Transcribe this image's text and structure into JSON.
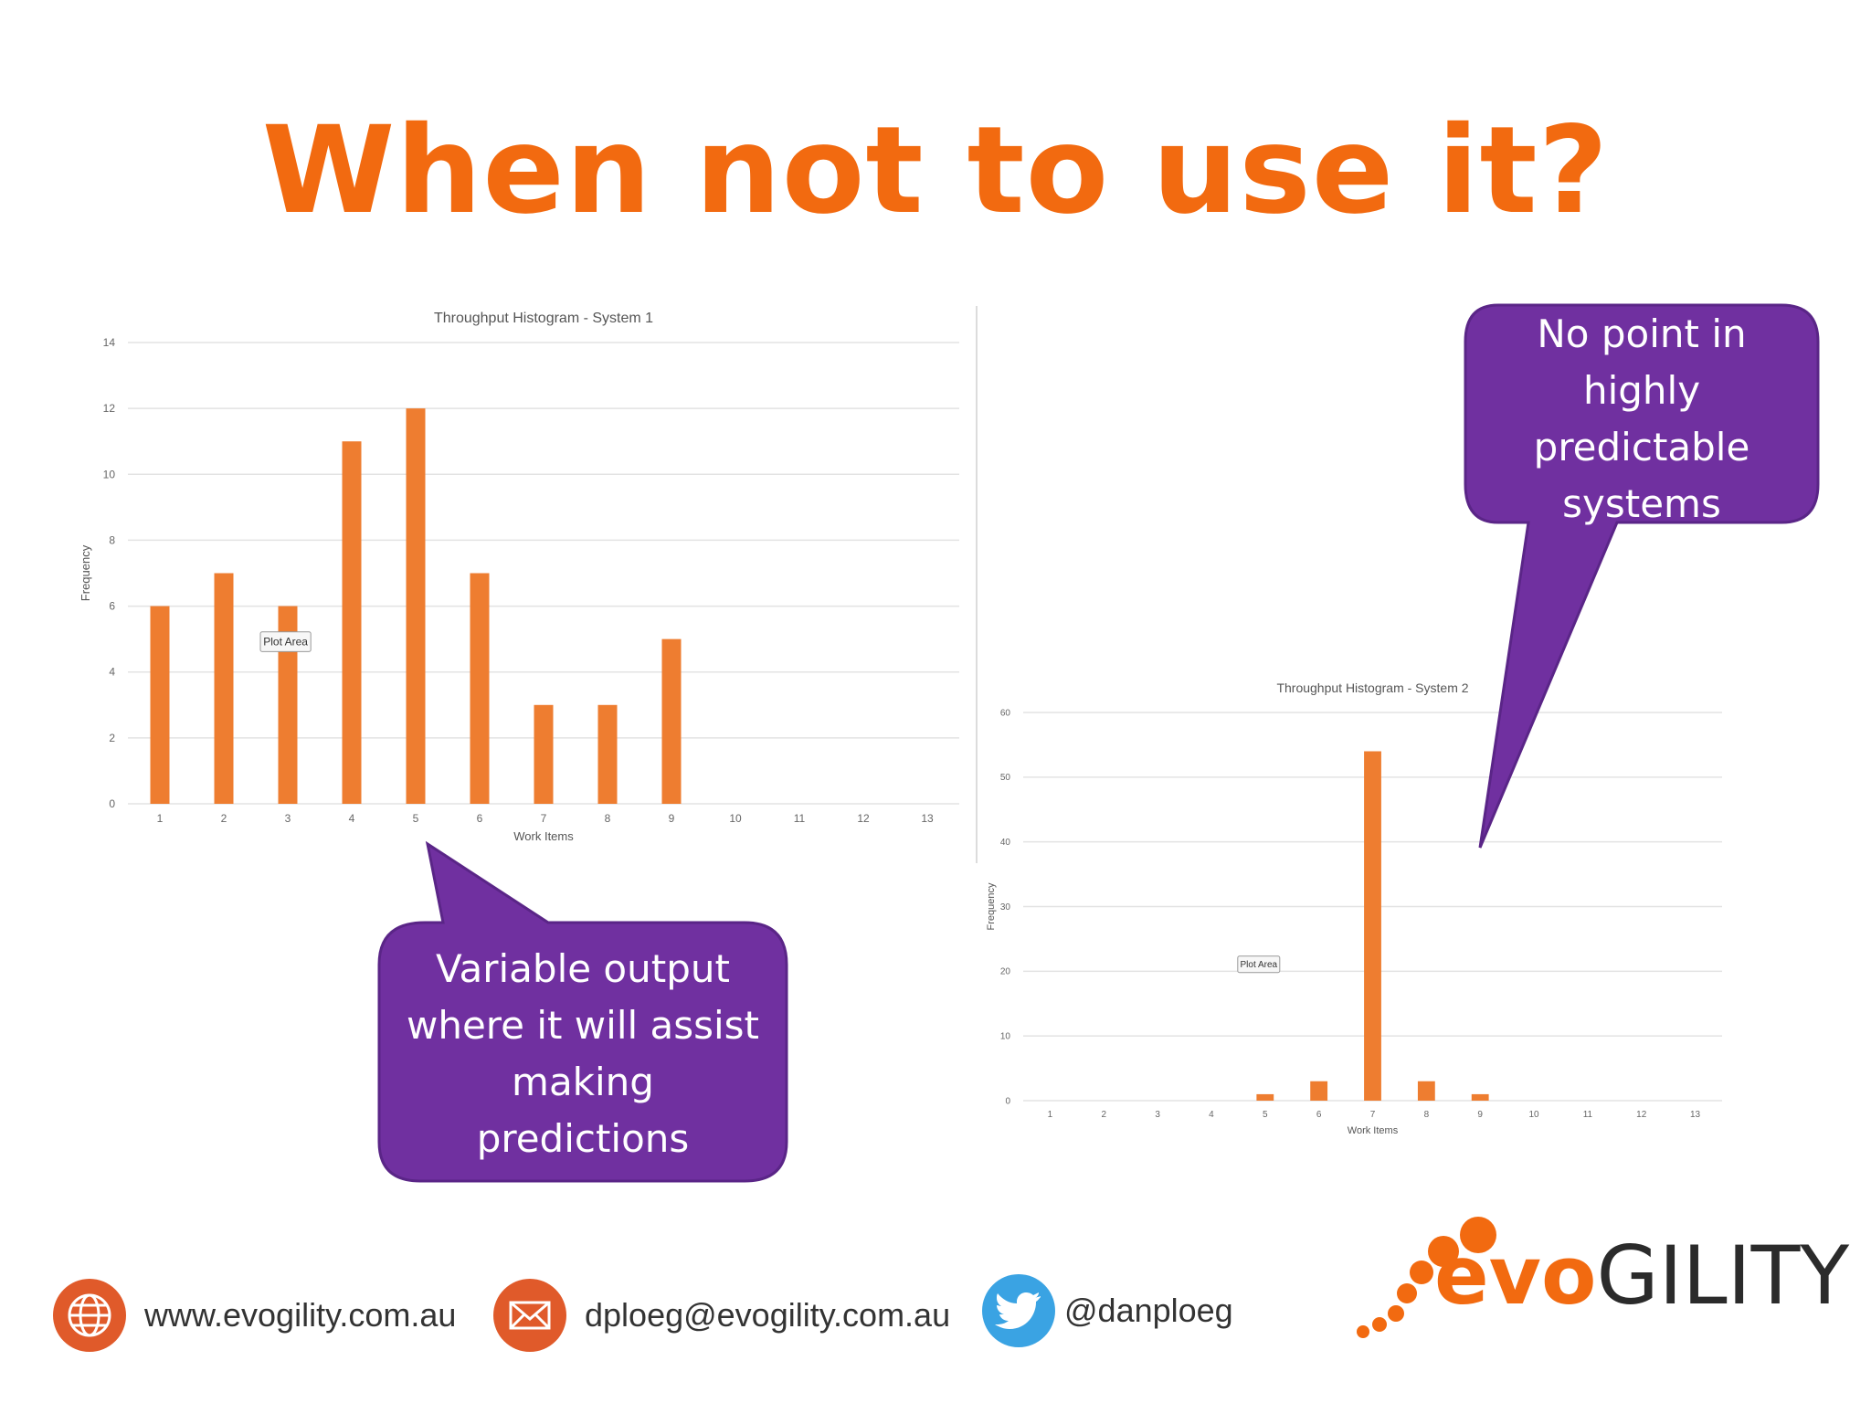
{
  "slide": {
    "title": "When not to use it?"
  },
  "colors": {
    "accent": "#f26a10",
    "bar": "#ee7d30",
    "callout": "#7030a0",
    "grid": "#e3e3e3",
    "web_icon": "#e05a2a",
    "mail_icon": "#e05a2a",
    "twitter_icon": "#3aa3e3"
  },
  "chart_data": [
    {
      "type": "bar",
      "title": "Throughput Histogram - System 1",
      "xlabel": "Work Items",
      "ylabel": "Frequency",
      "categories": [
        "1",
        "2",
        "3",
        "4",
        "5",
        "6",
        "7",
        "8",
        "9",
        "10",
        "11",
        "12",
        "13"
      ],
      "values": [
        6,
        7,
        6,
        11,
        12,
        7,
        3,
        3,
        5,
        0,
        0,
        0,
        0
      ],
      "ylim": [
        0,
        14
      ],
      "yticks": [
        0,
        2,
        4,
        6,
        8,
        10,
        12,
        14
      ],
      "grid": true,
      "tooltip": "Plot Area",
      "tooltip_category": "3"
    },
    {
      "type": "bar",
      "title": "Throughput Histogram - System 2",
      "xlabel": "Work Items",
      "ylabel": "Frequency",
      "categories": [
        "1",
        "2",
        "3",
        "4",
        "5",
        "6",
        "7",
        "8",
        "9",
        "10",
        "11",
        "12",
        "13"
      ],
      "values": [
        0,
        0,
        0,
        0,
        1,
        3,
        54,
        3,
        1,
        0,
        0,
        0,
        0
      ],
      "ylim": [
        0,
        60
      ],
      "yticks": [
        0,
        10,
        20,
        30,
        40,
        50,
        60
      ],
      "grid": true,
      "tooltip": "Plot Area",
      "tooltip_category": "5"
    }
  ],
  "callouts": {
    "left": {
      "lines": [
        "Variable output",
        "where it will assist",
        "making",
        "predictions"
      ]
    },
    "right": {
      "lines": [
        "No point in",
        "highly",
        "predictable",
        "systems"
      ]
    }
  },
  "footer": {
    "website": {
      "icon": "globe-icon",
      "text": "www.evogility.com.au"
    },
    "email": {
      "icon": "envelope-icon",
      "text": "dploeg@evogility.com.au"
    },
    "twitter": {
      "icon": "twitter-bird-icon",
      "text": "@danploeg"
    }
  },
  "logo": {
    "part1": "evo",
    "part2": "GILITY"
  }
}
